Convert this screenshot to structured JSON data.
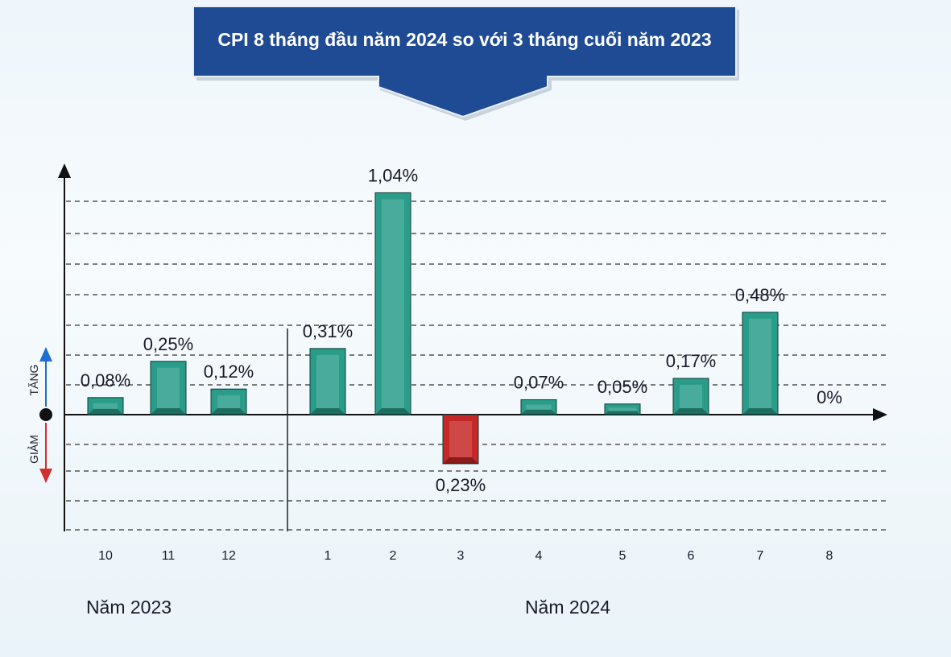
{
  "chart_data": {
    "type": "bar",
    "title": "CPI 8 tháng đầu năm 2024 so với 3 tháng cuối năm 2023",
    "categories": [
      "10",
      "11",
      "12",
      "1",
      "2",
      "3",
      "4",
      "5",
      "6",
      "7",
      "8"
    ],
    "groups": [
      {
        "label": "Năm 2023",
        "categories": [
          "10",
          "11",
          "12"
        ]
      },
      {
        "label": "Năm 2024",
        "categories": [
          "1",
          "2",
          "3",
          "4",
          "5",
          "6",
          "7",
          "8"
        ]
      }
    ],
    "values": [
      0.08,
      0.25,
      0.12,
      0.31,
      1.04,
      -0.23,
      0.07,
      0.05,
      0.17,
      0.48,
      0
    ],
    "data_labels": [
      "0,08%",
      "0,25%",
      "0,12%",
      "0,31%",
      "1,04%",
      "0,23%",
      "0,07%",
      "0,05%",
      "0,17%",
      "0,48%",
      "0%"
    ],
    "direction_labels": {
      "up": "TĂNG",
      "down": "GIẢM"
    },
    "colors": {
      "increase": "#2a9d8a",
      "decrease": "#c62828",
      "banner": "#1f4a94",
      "up_arrow": "#1e6fd0",
      "down_arrow": "#d32f2f"
    },
    "grid": true
  }
}
